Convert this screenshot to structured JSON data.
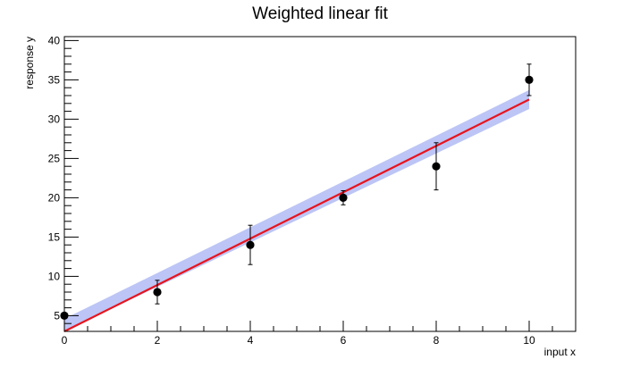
{
  "chart_data": {
    "type": "scatter",
    "title": "Weighted linear fit",
    "xlabel": "input x",
    "ylabel": "response y",
    "xlim": [
      0,
      11
    ],
    "ylim": [
      3,
      40.5
    ],
    "x_ticks": [
      0,
      2,
      4,
      6,
      8,
      10
    ],
    "y_ticks": [
      5,
      10,
      15,
      20,
      25,
      30,
      35,
      40
    ],
    "grid": false,
    "series": [
      {
        "kind": "data_points_with_error_bars",
        "color": "#000000",
        "points": [
          {
            "x": 0,
            "y": 5,
            "err": 0
          },
          {
            "x": 2,
            "y": 8,
            "err": 1.5
          },
          {
            "x": 4,
            "y": 14,
            "err": 2.5
          },
          {
            "x": 6,
            "y": 20,
            "err": 0.9
          },
          {
            "x": 8,
            "y": 24,
            "err": 3
          },
          {
            "x": 10,
            "y": 35,
            "err": 2
          }
        ]
      },
      {
        "kind": "fit_line",
        "color": "#e8141e",
        "x_range": [
          0,
          10
        ],
        "intercept": 3.0,
        "slope": 2.95
      },
      {
        "kind": "confidence_band",
        "color": "#bcc5f5",
        "x_range": [
          0,
          10
        ],
        "half_width_start": 1.6,
        "half_width_end": 1.2
      }
    ]
  }
}
